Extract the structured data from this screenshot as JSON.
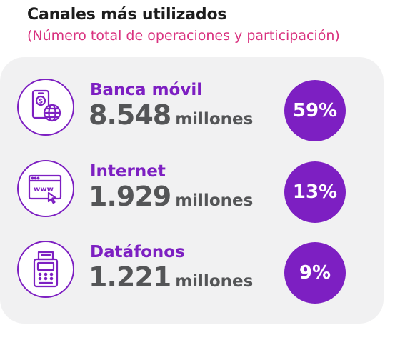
{
  "title": "Canales más utilizados",
  "subtitle": "(Número total de operaciones y participación)",
  "colors": {
    "accent": "#7d1fc2",
    "subtitle": "#d9317f",
    "value_text": "#545557",
    "card_bg": "#f1f1f2"
  },
  "chart_data": {
    "type": "table",
    "title": "Canales más utilizados",
    "subtitle": "(Número total de operaciones y participación)",
    "categories": [
      "Banca móvil",
      "Internet",
      "Datáfonos"
    ],
    "operations": [
      "8.548",
      "1.929",
      "1.221"
    ],
    "unit": "millones",
    "shares": [
      "59%",
      "13%",
      "9%"
    ],
    "series": [
      {
        "name": "",
        "values": [
          8548,
          1929,
          1221
        ]
      },
      {
        "name": "",
        "values": [
          59,
          13,
          9
        ]
      }
    ]
  },
  "items": [
    {
      "label": "Banca móvil",
      "value": "8.548",
      "unit": "millones",
      "share": "59%",
      "icon": "mobile-banking-icon"
    },
    {
      "label": "Internet",
      "value": "1.929",
      "unit": "millones",
      "share": "13%",
      "icon": "browser-www-icon"
    },
    {
      "label": "Datáfonos",
      "value": "1.221",
      "unit": "millones",
      "share": "9%",
      "icon": "payment-terminal-icon"
    }
  ]
}
